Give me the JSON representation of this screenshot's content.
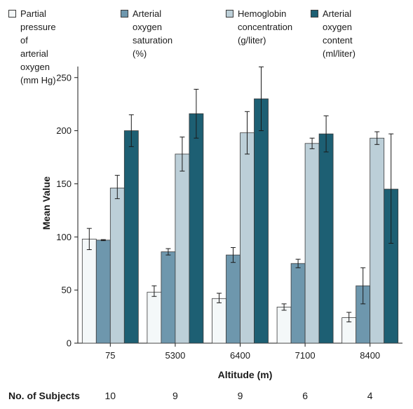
{
  "chart_data": {
    "type": "bar",
    "xlabel": "Altitude (m)",
    "ylabel": "Mean Value",
    "ylim": [
      0,
      260
    ],
    "yticks": [
      0,
      50,
      100,
      150,
      200,
      250
    ],
    "grid": false,
    "legend_position": "top",
    "categories": [
      "75",
      "5300",
      "6400",
      "7100",
      "8400"
    ],
    "series": [
      {
        "name": "Partial pressure\nof arterial oxygen\n(mm Hg)",
        "color": "#f4f8f9",
        "values": [
          98,
          48,
          42,
          34,
          24
        ],
        "error": [
          [
            88,
            108
          ],
          [
            44,
            54
          ],
          [
            38,
            47
          ],
          [
            31,
            37
          ],
          [
            20,
            29
          ]
        ]
      },
      {
        "name": "Arterial oxygen\nsaturation (%)",
        "color": "#6e97ad",
        "values": [
          97,
          86,
          83,
          75,
          54
        ],
        "error": [
          [
            96.5,
            97.5
          ],
          [
            83,
            89
          ],
          [
            76,
            90
          ],
          [
            71,
            79
          ],
          [
            37,
            71
          ]
        ]
      },
      {
        "name": "Hemoglobin\nconcentration\n(g/liter)",
        "color": "#bccfd8",
        "values": [
          146,
          178,
          198,
          188,
          193
        ],
        "error": [
          [
            136,
            158
          ],
          [
            162,
            194
          ],
          [
            178,
            218
          ],
          [
            183,
            193
          ],
          [
            187,
            199
          ]
        ]
      },
      {
        "name": "Arterial oxygen\ncontent (ml/liter)",
        "color": "#1d5f73",
        "values": [
          200,
          216,
          230,
          197,
          145
        ],
        "error": [
          [
            185,
            215
          ],
          [
            193,
            239
          ],
          [
            200,
            260
          ],
          [
            180,
            214
          ],
          [
            94,
            197
          ]
        ]
      }
    ],
    "footer": {
      "label": "No. of Subjects",
      "values": [
        "10",
        "9",
        "9",
        "6",
        "4"
      ]
    }
  }
}
